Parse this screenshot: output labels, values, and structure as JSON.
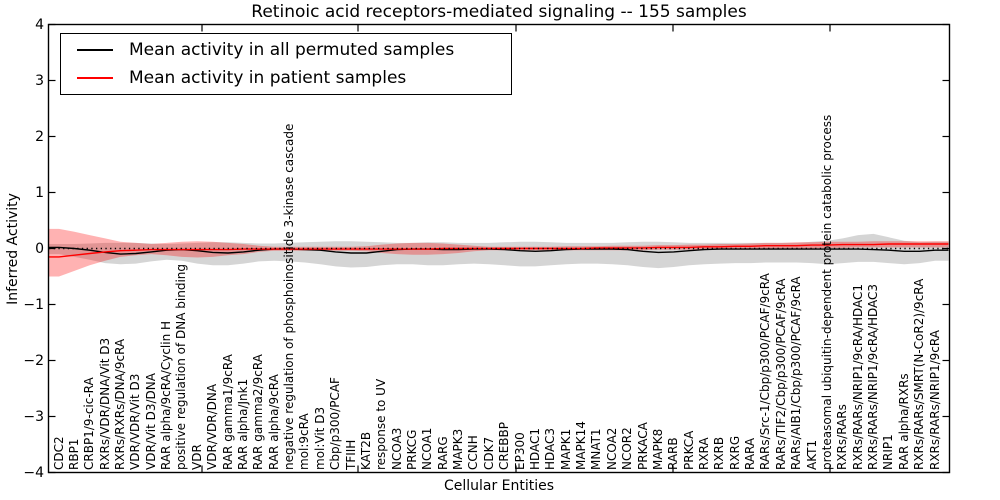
{
  "title": "Retinoic acid receptors-mediated signaling -- 155 samples",
  "legend": {
    "items": [
      {
        "label": "Mean activity in all permuted samples",
        "color": "#000000"
      },
      {
        "label": "Mean activity in patient samples",
        "color": "#ff0000"
      }
    ]
  },
  "axes": {
    "xlabel": "Cellular Entities",
    "ylabel": "Inferred Activity",
    "yticks": [
      4,
      3,
      2,
      1,
      0,
      -1,
      -2,
      -3,
      -4
    ],
    "ylim": [
      -4,
      4
    ]
  },
  "chart_data": {
    "type": "line",
    "title": "Retinoic acid receptors-mediated signaling -- 155 samples",
    "xlabel": "Cellular Entities",
    "ylabel": "Inferred Activity",
    "ylim": [
      -4,
      4
    ],
    "grid": false,
    "legend_position": "upper left",
    "zero_line_style": "dotted",
    "categories": [
      "CDC2",
      "RBP1",
      "CRBP1/9-cic-RA",
      "RXRs/VDR/DNA/Vit D3",
      "RXRs/RXRs/DNA/9cRA",
      "VDR/VDR/Vit D3",
      "VDR/Vit D3/DNA",
      "RAR alpha/9cRA/Cyclin H",
      "positive regulation of DNA binding",
      "VDR",
      "VDR/VDR/DNA",
      "RAR gamma1/9cRA",
      "RAR alpha/Jnk1",
      "RAR gamma2/9cRA",
      "RAR alpha/9cRA",
      "negative regulation of phosphoinositide 3-kinase cascade",
      "mol:9cRA",
      "mol:Vit D3",
      "Cbp/p300/PCAF",
      "TFIIH",
      "KAT2B",
      "response to UV",
      "NCOA3",
      "PRKCG",
      "NCOA1",
      "RARG",
      "MAPK3",
      "CCNH",
      "CDK7",
      "CREBBP",
      "EP300",
      "HDAC1",
      "HDAC3",
      "MAPK1",
      "MAPK14",
      "MNAT1",
      "NCOA2",
      "NCOR2",
      "PRKACA",
      "MAPK8",
      "RARB",
      "PRKCA",
      "RXRA",
      "RXRB",
      "RXRG",
      "RARA",
      "RARs/Src-1/Cbp/p300/PCAF/9cRA",
      "RARs/TIF2/Cbp/p300/PCAF/9cRA",
      "RARs/AIB1/Cbp/p300/PCAF/9cRA",
      "AKT1",
      "proteasomal ubiquitin-dependent protein catabolic process",
      "RXRs/RARs",
      "RXRs/RARs/NRIP1/9cRA/HDAC1",
      "RXRs/RARs/NRIP1/9cRA/HDAC3",
      "NRIP1",
      "RAR alpha/RXRs",
      "RXRs/RARs/SMRT(N-CoR2)/9cRA",
      "RXRs/RARs/NRIP1/9cRA"
    ],
    "series": [
      {
        "name": "Mean activity in all permuted samples",
        "color": "#000000",
        "values": [
          0.02,
          0.0,
          -0.03,
          -0.07,
          -0.1,
          -0.09,
          -0.06,
          -0.03,
          -0.02,
          -0.04,
          -0.07,
          -0.08,
          -0.06,
          -0.03,
          -0.01,
          -0.01,
          -0.02,
          -0.03,
          -0.06,
          -0.08,
          -0.08,
          -0.05,
          -0.02,
          -0.01,
          -0.01,
          -0.02,
          -0.02,
          -0.01,
          -0.01,
          -0.02,
          -0.04,
          -0.05,
          -0.04,
          -0.02,
          -0.01,
          -0.01,
          -0.01,
          -0.02,
          -0.05,
          -0.07,
          -0.06,
          -0.04,
          -0.02,
          -0.01,
          -0.01,
          -0.01,
          -0.01,
          -0.01,
          -0.01,
          -0.01,
          -0.01,
          -0.01,
          -0.01,
          -0.02,
          -0.03,
          -0.05,
          -0.05,
          -0.03
        ],
        "band": {
          "fill": "rgba(128,128,128,0.33)",
          "lower": [
            -0.1,
            -0.15,
            -0.2,
            -0.26,
            -0.28,
            -0.27,
            -0.23,
            -0.2,
            -0.22,
            -0.27,
            -0.3,
            -0.3,
            -0.27,
            -0.23,
            -0.22,
            -0.23,
            -0.25,
            -0.28,
            -0.32,
            -0.34,
            -0.33,
            -0.3,
            -0.28,
            -0.28,
            -0.3,
            -0.3,
            -0.28,
            -0.27,
            -0.28,
            -0.3,
            -0.32,
            -0.32,
            -0.3,
            -0.28,
            -0.27,
            -0.27,
            -0.28,
            -0.3,
            -0.33,
            -0.35,
            -0.33,
            -0.3,
            -0.28,
            -0.27,
            -0.26,
            -0.26,
            -0.25,
            -0.25,
            -0.25,
            -0.26,
            -0.28,
            -0.26,
            -0.24,
            -0.24,
            -0.26,
            -0.28,
            -0.26,
            -0.22
          ],
          "upper": [
            0.08,
            0.08,
            0.09,
            0.1,
            0.1,
            0.1,
            0.09,
            0.08,
            0.09,
            0.1,
            0.11,
            0.11,
            0.1,
            0.09,
            0.09,
            0.1,
            0.11,
            0.12,
            0.13,
            0.13,
            0.12,
            0.11,
            0.1,
            0.1,
            0.11,
            0.11,
            0.1,
            0.1,
            0.1,
            0.11,
            0.12,
            0.12,
            0.11,
            0.1,
            0.1,
            0.1,
            0.1,
            0.11,
            0.12,
            0.12,
            0.11,
            0.1,
            0.1,
            0.1,
            0.1,
            0.1,
            0.1,
            0.1,
            0.1,
            0.12,
            0.14,
            0.18,
            0.24,
            0.26,
            0.2,
            0.14,
            0.11,
            0.12
          ]
        }
      },
      {
        "name": "Mean activity in patient samples",
        "color": "#ff0000",
        "values": [
          -0.15,
          -0.12,
          -0.09,
          -0.06,
          -0.04,
          -0.03,
          -0.02,
          -0.02,
          -0.02,
          -0.02,
          -0.02,
          -0.02,
          -0.01,
          -0.01,
          -0.01,
          -0.01,
          -0.01,
          -0.01,
          -0.01,
          -0.01,
          -0.01,
          -0.01,
          -0.01,
          -0.01,
          -0.01,
          0.0,
          0.0,
          0.0,
          0.0,
          0.0,
          0.0,
          0.0,
          0.0,
          0.0,
          0.0,
          0.01,
          0.01,
          0.01,
          0.01,
          0.02,
          0.02,
          0.02,
          0.03,
          0.03,
          0.04,
          0.04,
          0.05,
          0.05,
          0.05,
          0.06,
          0.06,
          0.07,
          0.07,
          0.07,
          0.08,
          0.08,
          0.08,
          0.08
        ],
        "band": {
          "fill": "rgba(255,0,0,0.30)",
          "lower": [
            -0.5,
            -0.4,
            -0.3,
            -0.22,
            -0.15,
            -0.12,
            -0.1,
            -0.12,
            -0.15,
            -0.16,
            -0.15,
            -0.12,
            -0.1,
            -0.06,
            -0.04,
            -0.04,
            -0.04,
            -0.04,
            -0.04,
            -0.04,
            -0.05,
            -0.08,
            -0.1,
            -0.11,
            -0.11,
            -0.1,
            -0.08,
            -0.05,
            -0.03,
            -0.03,
            -0.03,
            -0.03,
            -0.03,
            -0.03,
            -0.03,
            -0.03,
            -0.03,
            -0.03,
            -0.03,
            -0.02,
            -0.02,
            -0.02,
            -0.02,
            -0.02,
            -0.01,
            -0.01,
            -0.01,
            0.0,
            0.0,
            0.0,
            0.01,
            0.01,
            0.02,
            0.02,
            0.02,
            0.02,
            0.02,
            0.02
          ],
          "upper": [
            0.35,
            0.3,
            0.24,
            0.18,
            0.12,
            0.1,
            0.08,
            0.1,
            0.12,
            0.13,
            0.12,
            0.1,
            0.08,
            0.05,
            0.03,
            0.03,
            0.03,
            0.03,
            0.03,
            0.03,
            0.04,
            0.07,
            0.09,
            0.1,
            0.1,
            0.09,
            0.07,
            0.05,
            0.03,
            0.03,
            0.03,
            0.03,
            0.03,
            0.04,
            0.04,
            0.04,
            0.05,
            0.05,
            0.05,
            0.06,
            0.06,
            0.07,
            0.07,
            0.08,
            0.08,
            0.09,
            0.1,
            0.1,
            0.11,
            0.11,
            0.12,
            0.12,
            0.12,
            0.13,
            0.13,
            0.13,
            0.13,
            0.13
          ]
        }
      }
    ]
  }
}
